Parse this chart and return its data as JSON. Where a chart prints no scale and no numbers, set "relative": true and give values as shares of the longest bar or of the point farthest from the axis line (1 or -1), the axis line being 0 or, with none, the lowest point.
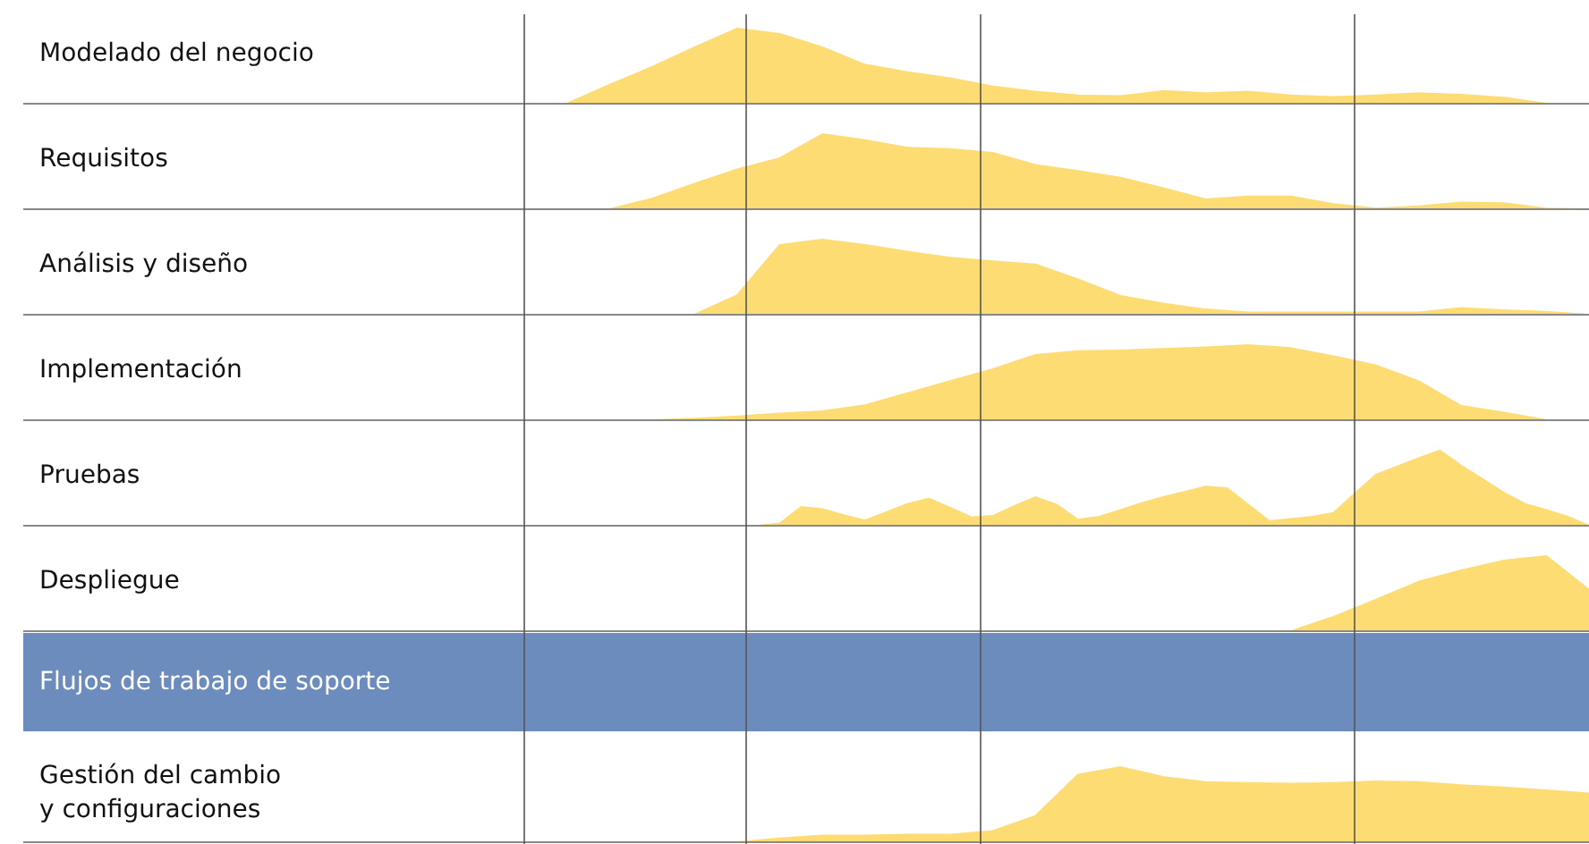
{
  "chart_data": [
    {
      "type": "area",
      "relative": true,
      "ylabel": "Modelado del negocio",
      "color": "#fedc74",
      "categories": [
        null,
        null,
        null,
        null,
        null,
        null,
        null,
        null,
        null,
        null,
        null,
        null,
        null,
        null,
        null,
        null,
        null,
        null,
        null,
        null,
        null,
        null,
        null,
        null,
        null,
        null
      ],
      "values": [
        0,
        0,
        0.25,
        0.49,
        0.75,
        1,
        0.93,
        0.75,
        0.52,
        0.42,
        0.34,
        0.23,
        0.16,
        0.11,
        0.1,
        0.17,
        0.14,
        0.16,
        0.11,
        0.09,
        0.11,
        0.14,
        0.12,
        0.08,
        0,
        0
      ]
    },
    {
      "type": "area",
      "relative": true,
      "ylabel": "Requisitos",
      "color": "#fedc74",
      "categories": [
        null,
        null,
        null,
        null,
        null,
        null,
        null,
        null,
        null,
        null,
        null,
        null,
        null,
        null,
        null,
        null,
        null,
        null,
        null,
        null,
        null,
        null,
        null,
        null,
        null,
        null
      ],
      "values": [
        0,
        0,
        0,
        0.14,
        0.34,
        0.53,
        0.68,
        1,
        0.92,
        0.82,
        0.8,
        0.75,
        0.59,
        0.51,
        0.42,
        0.28,
        0.13,
        0.17,
        0.17,
        0.07,
        0.01,
        0.04,
        0.09,
        0.08,
        0.01,
        0
      ]
    },
    {
      "type": "area",
      "relative": true,
      "ylabel": "Análisis y diseño",
      "color": "#fedc74",
      "categories": [
        null,
        null,
        null,
        null,
        null,
        null,
        null,
        null,
        null,
        null,
        null,
        null,
        null,
        null,
        null,
        null,
        null,
        null,
        null,
        null,
        null,
        null,
        null,
        null,
        null,
        null
      ],
      "values": [
        0,
        0,
        0,
        0,
        0,
        0.26,
        0.93,
        1,
        0.93,
        0.84,
        0.76,
        0.71,
        0.67,
        0.47,
        0.25,
        0.15,
        0.07,
        0.03,
        0.03,
        0.03,
        0.03,
        0.03,
        0.09,
        0.06,
        0.04,
        0
      ]
    },
    {
      "type": "area",
      "relative": true,
      "ylabel": "Implementación",
      "color": "#fedc74",
      "categories": [
        null,
        null,
        null,
        null,
        null,
        null,
        null,
        null,
        null,
        null,
        null,
        null,
        null,
        null,
        null,
        null,
        null,
        null,
        null,
        null,
        null,
        null,
        null,
        null,
        null,
        null
      ],
      "values": [
        0,
        0,
        0,
        0,
        0.02,
        0.05,
        0.09,
        0.12,
        0.2,
        0.36,
        0.52,
        0.68,
        0.87,
        0.92,
        0.93,
        0.95,
        0.97,
        1,
        0.96,
        0.85,
        0.73,
        0.52,
        0.19,
        0.1,
        0,
        0
      ]
    },
    {
      "type": "area",
      "relative": true,
      "ylabel": "Pruebas",
      "color": "#fedc74",
      "categories": [
        null,
        null,
        null,
        null,
        null,
        null,
        null,
        null,
        null,
        null,
        null,
        null,
        null,
        null,
        null,
        null,
        null,
        null,
        null,
        null,
        null,
        null,
        null,
        null,
        null,
        null,
        null,
        null,
        null,
        null,
        null,
        null,
        null,
        null,
        null,
        null,
        null,
        null,
        null,
        null,
        null,
        null,
        null,
        null,
        null,
        null,
        null,
        null,
        null,
        null,
        null
      ],
      "values": [
        0,
        0,
        0,
        0,
        0,
        0,
        0,
        0,
        0,
        0,
        0,
        0,
        0.03,
        0.25,
        0.22,
        0.14,
        0.07,
        0.18,
        0.29,
        0.36,
        0.24,
        0.11,
        0.13,
        0.26,
        0.38,
        0.28,
        0.08,
        0.12,
        0.21,
        0.3,
        0.38,
        0.45,
        0.52,
        0.5,
        0.28,
        0.06,
        0.09,
        0.12,
        0.17,
        0.43,
        0.68,
        0.79,
        0.9,
        1,
        0.8,
        0.62,
        0.44,
        0.29,
        0.21,
        0.12,
        0
      ]
    },
    {
      "type": "area",
      "relative": true,
      "ylabel": "Despliegue",
      "color": "#fedc74",
      "categories": [
        null,
        null,
        null,
        null,
        null,
        null,
        null,
        null,
        null,
        null,
        null,
        null,
        null,
        null,
        null,
        null,
        null,
        null,
        null,
        null,
        null,
        null,
        null,
        null,
        null,
        null
      ],
      "values": [
        0,
        0,
        0,
        0,
        0,
        0,
        0,
        0,
        0,
        0,
        0,
        0,
        0,
        0,
        0,
        0,
        0,
        0,
        0,
        0.19,
        0.42,
        0.66,
        0.81,
        0.94,
        1,
        0.55
      ]
    },
    {
      "type": "other",
      "title": "Flujos de trabajo de soporte",
      "color": "#6b8cbd"
    },
    {
      "type": "area",
      "relative": true,
      "ylabel": "Gestión del cambio y configuraciones",
      "color": "#fedc74",
      "categories": [
        null,
        null,
        null,
        null,
        null,
        null,
        null,
        null,
        null,
        null,
        null,
        null,
        null,
        null,
        null,
        null,
        null,
        null,
        null,
        null,
        null,
        null,
        null,
        null,
        null,
        null
      ],
      "values": [
        0,
        0,
        0,
        0,
        0,
        0,
        0.05,
        0.09,
        0.09,
        0.1,
        0.1,
        0.15,
        0.35,
        0.9,
        1,
        0.87,
        0.8,
        0.79,
        0.78,
        0.79,
        0.81,
        0.8,
        0.76,
        0.73,
        0.69,
        0.65
      ]
    }
  ]
}
